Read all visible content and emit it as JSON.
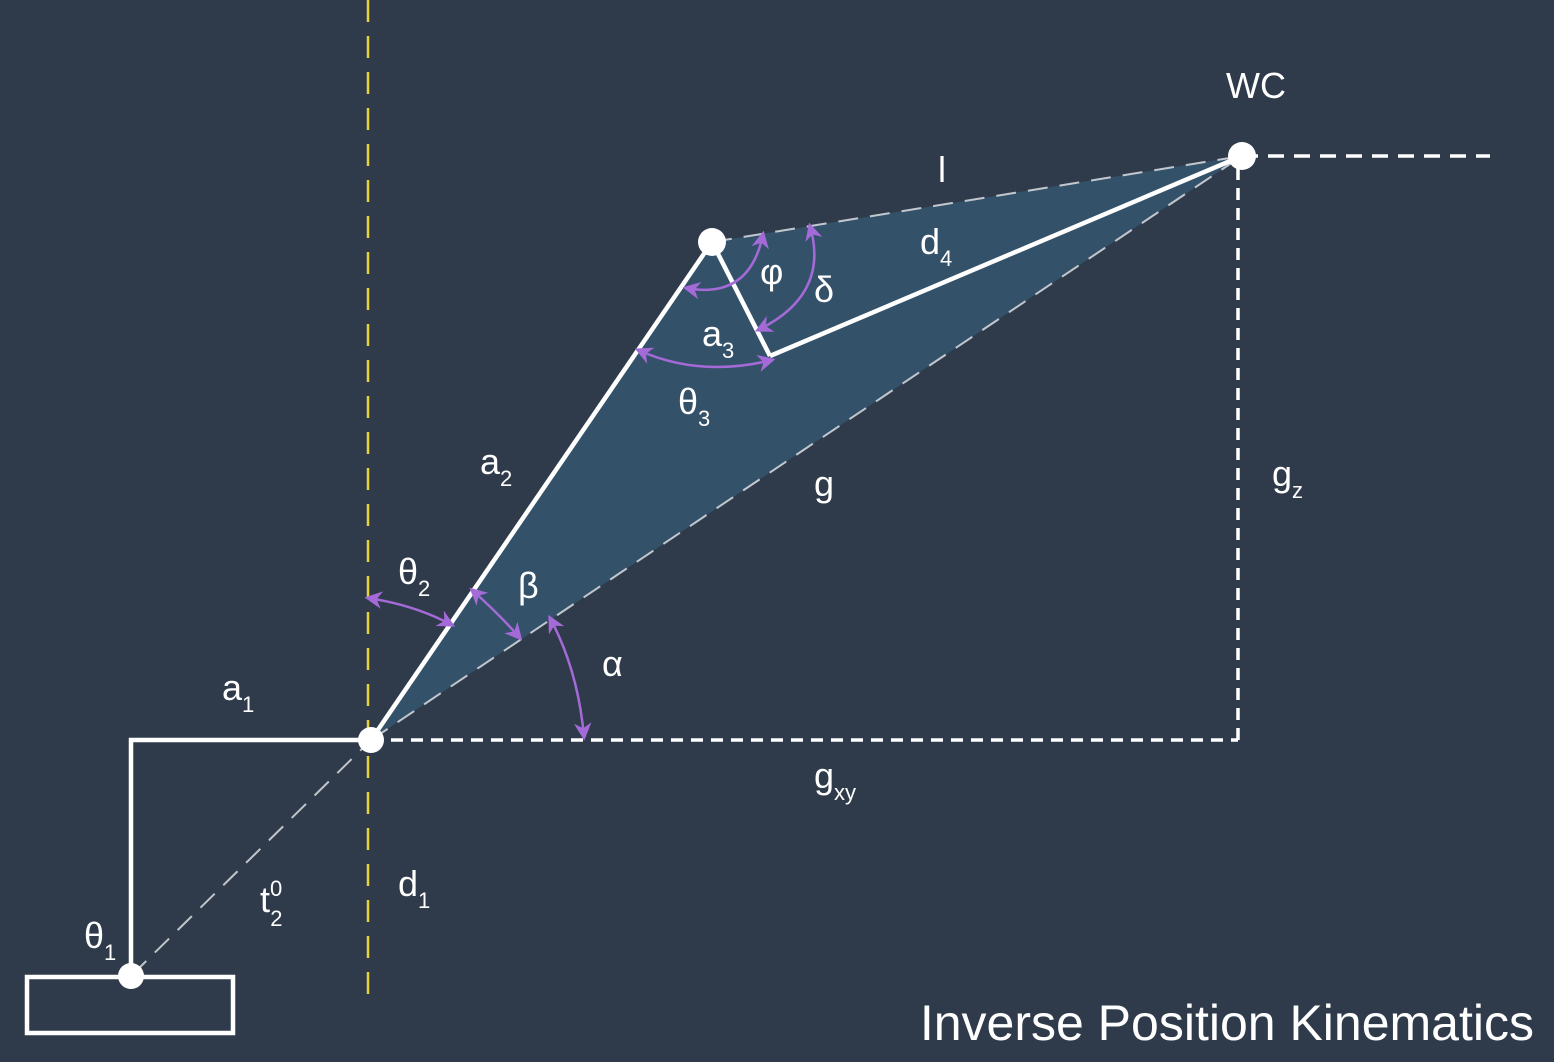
{
  "title": "Inverse Position Kinematics",
  "colors": {
    "background": "#2f3b4b",
    "triangle_fill": "#34516a",
    "link_line": "#ffffff",
    "z_axis": "#e6d23a",
    "angle_arrows": "#a46ad8"
  },
  "points": {
    "wrist_center": "WC"
  },
  "labels": {
    "a1": {
      "base": "a",
      "sub": "1"
    },
    "a2": {
      "base": "a",
      "sub": "2"
    },
    "a3": {
      "base": "a",
      "sub": "3"
    },
    "d1": {
      "base": "d",
      "sub": "1"
    },
    "d4": {
      "base": "d",
      "sub": "4"
    },
    "g": {
      "base": "g",
      "sub": ""
    },
    "gz": {
      "base": "g",
      "sub": "z"
    },
    "gxy": {
      "base": "g",
      "sub": "xy"
    },
    "l": {
      "base": "l",
      "sub": ""
    },
    "t02": {
      "base": "t",
      "sup": "0",
      "sub": "2"
    },
    "theta1": {
      "base": "θ",
      "sub": "1"
    },
    "theta2": {
      "base": "θ",
      "sub": "2"
    },
    "theta3": {
      "base": "θ",
      "sub": "3"
    },
    "alpha": {
      "base": "α",
      "sub": ""
    },
    "beta": {
      "base": "β",
      "sub": ""
    },
    "phi": {
      "base": "φ",
      "sub": ""
    },
    "delta": {
      "base": "δ",
      "sub": ""
    }
  }
}
